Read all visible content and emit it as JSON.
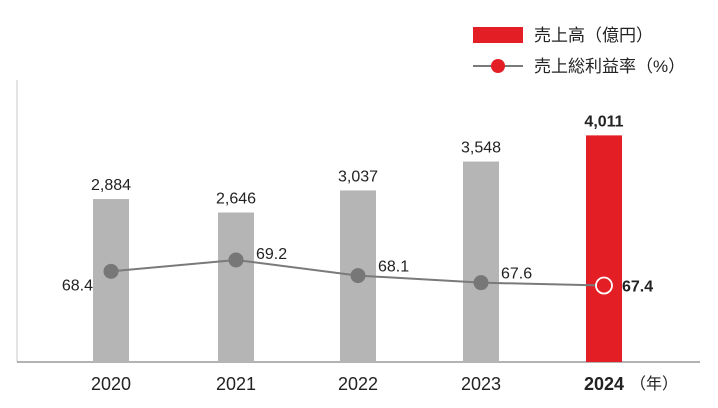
{
  "chart_data": {
    "type": "bar",
    "categories": [
      "2020",
      "2021",
      "2022",
      "2023",
      "2024"
    ],
    "x_unit": "（年）",
    "series": [
      {
        "name": "売上高（億円）",
        "type": "bar",
        "values": [
          2884,
          2646,
          3037,
          3548,
          4011
        ],
        "labels": [
          "2,884",
          "2,646",
          "3,037",
          "3,548",
          "4,011"
        ],
        "color": "#b5b5b5",
        "highlight_color": "#e31e24"
      },
      {
        "name": "売上総利益率（%）",
        "type": "line",
        "values": [
          68.4,
          69.2,
          68.1,
          67.6,
          67.4
        ],
        "labels": [
          "68.4",
          "69.2",
          "68.1",
          "67.6",
          "67.4"
        ],
        "color": "#6b6b6b",
        "highlight_color": "#e31e24"
      }
    ],
    "highlight_index": 4,
    "legend_position": "top-right",
    "grid": false
  }
}
